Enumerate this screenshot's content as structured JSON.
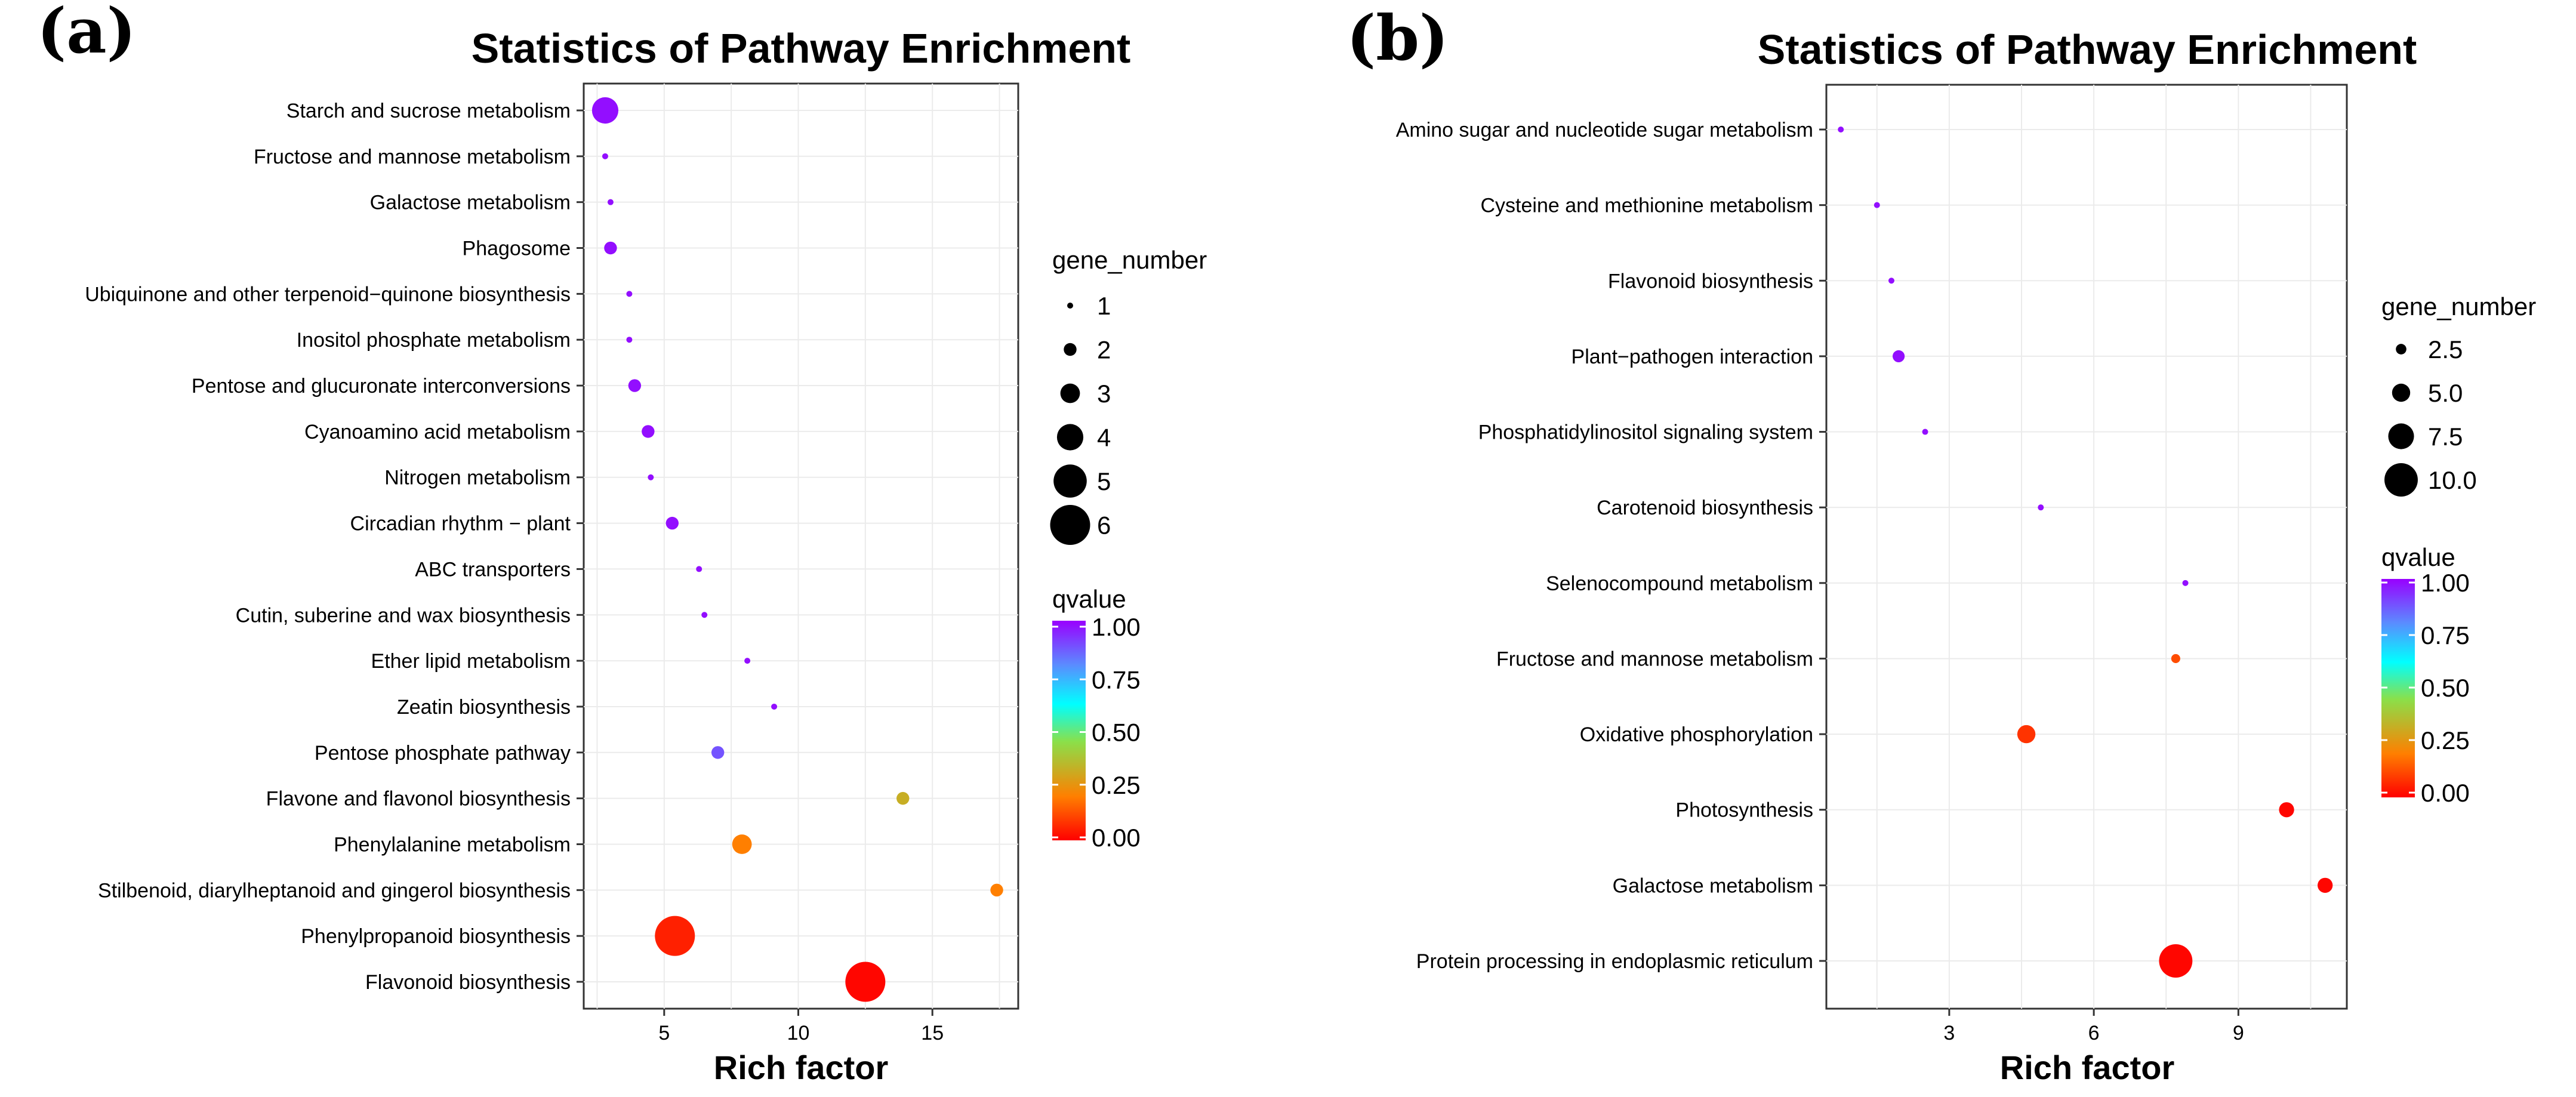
{
  "chart_data": [
    {
      "panel_label": "(a)",
      "type": "scatter",
      "title": "Statistics of Pathway Enrichment",
      "xlabel": "Rich factor",
      "ylabel": "",
      "xlim": [
        2,
        18.2
      ],
      "xticks": [
        5,
        10,
        15
      ],
      "grid": true,
      "legend_placement": "right",
      "categories": [
        "Starch and sucrose metabolism",
        "Fructose and mannose metabolism",
        "Galactose metabolism",
        "Phagosome",
        "Ubiquinone and other terpenoid−quinone biosynthesis",
        "Inositol phosphate metabolism",
        "Pentose and glucuronate interconversions",
        "Cyanoamino acid metabolism",
        "Nitrogen metabolism",
        "Circadian rhythm − plant",
        "ABC transporters",
        "Cutin, suberine and wax biosynthesis",
        "Ether lipid metabolism",
        "Zeatin biosynthesis",
        "Pentose phosphate pathway",
        "Flavone and flavonol biosynthesis",
        "Phenylalanine metabolism",
        "Stilbenoid, diarylheptanoid and gingerol biosynthesis",
        "Phenylpropanoid biosynthesis",
        "Flavonoid biosynthesis"
      ],
      "points": [
        {
          "category": "Starch and sucrose metabolism",
          "rich_factor": 2.8,
          "gene_number": 4,
          "qvalue": 0.98
        },
        {
          "category": "Fructose and mannose metabolism",
          "rich_factor": 2.8,
          "gene_number": 1,
          "qvalue": 0.98
        },
        {
          "category": "Galactose metabolism",
          "rich_factor": 3.0,
          "gene_number": 1,
          "qvalue": 0.98
        },
        {
          "category": "Phagosome",
          "rich_factor": 3.0,
          "gene_number": 2,
          "qvalue": 0.98
        },
        {
          "category": "Ubiquinone and other terpenoid−quinone biosynthesis",
          "rich_factor": 3.7,
          "gene_number": 1,
          "qvalue": 0.98
        },
        {
          "category": "Inositol phosphate metabolism",
          "rich_factor": 3.7,
          "gene_number": 1,
          "qvalue": 0.98
        },
        {
          "category": "Pentose and glucuronate interconversions",
          "rich_factor": 3.9,
          "gene_number": 2,
          "qvalue": 0.98
        },
        {
          "category": "Cyanoamino acid metabolism",
          "rich_factor": 4.4,
          "gene_number": 2,
          "qvalue": 0.98
        },
        {
          "category": "Nitrogen metabolism",
          "rich_factor": 4.5,
          "gene_number": 1,
          "qvalue": 0.98
        },
        {
          "category": "Circadian rhythm − plant",
          "rich_factor": 5.3,
          "gene_number": 2,
          "qvalue": 0.98
        },
        {
          "category": "ABC transporters",
          "rich_factor": 6.3,
          "gene_number": 1,
          "qvalue": 0.98
        },
        {
          "category": "Cutin, suberine and wax biosynthesis",
          "rich_factor": 6.5,
          "gene_number": 1,
          "qvalue": 0.98
        },
        {
          "category": "Ether lipid metabolism",
          "rich_factor": 8.1,
          "gene_number": 1,
          "qvalue": 0.98
        },
        {
          "category": "Zeatin biosynthesis",
          "rich_factor": 9.1,
          "gene_number": 1,
          "qvalue": 0.98
        },
        {
          "category": "Pentose phosphate pathway",
          "rich_factor": 7.0,
          "gene_number": 2,
          "qvalue": 0.88
        },
        {
          "category": "Flavone and flavonol biosynthesis",
          "rich_factor": 13.9,
          "gene_number": 2,
          "qvalue": 0.32
        },
        {
          "category": "Phenylalanine metabolism",
          "rich_factor": 7.9,
          "gene_number": 3,
          "qvalue": 0.2
        },
        {
          "category": "Stilbenoid, diarylheptanoid and gingerol biosynthesis",
          "rich_factor": 17.4,
          "gene_number": 2,
          "qvalue": 0.2
        },
        {
          "category": "Phenylpropanoid biosynthesis",
          "rich_factor": 5.4,
          "gene_number": 6,
          "qvalue": 0.05
        },
        {
          "category": "Flavonoid biosynthesis",
          "rich_factor": 12.5,
          "gene_number": 6,
          "qvalue": 0.01
        }
      ],
      "size_legend": {
        "title": "gene_number",
        "values": [
          1,
          2,
          3,
          4,
          5,
          6
        ],
        "labels": [
          "1",
          "2",
          "3",
          "4",
          "5",
          "6"
        ]
      },
      "color_legend": {
        "title": "qvalue",
        "values": [
          1.0,
          0.75,
          0.5,
          0.25,
          0.0
        ],
        "labels": [
          "1.00",
          "0.75",
          "0.50",
          "0.25",
          "0.00"
        ]
      }
    },
    {
      "panel_label": "(b)",
      "type": "scatter",
      "title": "Statistics of Pathway Enrichment",
      "xlabel": "Rich factor",
      "ylabel": "",
      "xlim": [
        0.45,
        11.25
      ],
      "xticks": [
        3,
        6,
        9
      ],
      "grid": true,
      "legend_placement": "right",
      "categories": [
        "Amino sugar and nucleotide sugar metabolism",
        "Cysteine and methionine metabolism",
        "Flavonoid biosynthesis",
        "Plant−pathogen interaction",
        "Phosphatidylinositol signaling system",
        "Carotenoid biosynthesis",
        "Selenocompound metabolism",
        "Fructose and mannose metabolism",
        "Oxidative phosphorylation",
        "Photosynthesis",
        "Galactose metabolism",
        "Protein processing in endoplasmic reticulum"
      ],
      "points": [
        {
          "category": "Amino sugar and nucleotide sugar metabolism",
          "rich_factor": 0.75,
          "gene_number": 1,
          "qvalue": 0.98
        },
        {
          "category": "Cysteine and methionine metabolism",
          "rich_factor": 1.5,
          "gene_number": 1,
          "qvalue": 0.98
        },
        {
          "category": "Flavonoid biosynthesis",
          "rich_factor": 1.8,
          "gene_number": 1,
          "qvalue": 0.98
        },
        {
          "category": "Plant−pathogen interaction",
          "rich_factor": 1.95,
          "gene_number": 3,
          "qvalue": 0.98
        },
        {
          "category": "Phosphatidylinositol signaling system",
          "rich_factor": 2.5,
          "gene_number": 1,
          "qvalue": 0.98
        },
        {
          "category": "Carotenoid biosynthesis",
          "rich_factor": 4.9,
          "gene_number": 1,
          "qvalue": 0.98
        },
        {
          "category": "Selenocompound metabolism",
          "rich_factor": 7.9,
          "gene_number": 1,
          "qvalue": 0.98
        },
        {
          "category": "Fructose and mannose metabolism",
          "rich_factor": 7.7,
          "gene_number": 2,
          "qvalue": 0.12
        },
        {
          "category": "Oxidative phosphorylation",
          "rich_factor": 4.6,
          "gene_number": 5,
          "qvalue": 0.08
        },
        {
          "category": "Photosynthesis",
          "rich_factor": 10.0,
          "gene_number": 4,
          "qvalue": 0.01
        },
        {
          "category": "Galactose metabolism",
          "rich_factor": 10.8,
          "gene_number": 4,
          "qvalue": 0.01
        },
        {
          "category": "Protein processing in endoplasmic reticulum",
          "rich_factor": 7.7,
          "gene_number": 10,
          "qvalue": 0.01
        }
      ],
      "size_legend": {
        "title": "gene_number",
        "values": [
          2.5,
          5.0,
          7.5,
          10.0
        ],
        "labels": [
          "2.5",
          "5.0",
          "7.5",
          "10.0"
        ]
      },
      "color_legend": {
        "title": "qvalue",
        "values": [
          1.0,
          0.75,
          0.5,
          0.25,
          0.0
        ],
        "labels": [
          "1.00",
          "0.75",
          "0.50",
          "0.25",
          "0.00"
        ]
      }
    }
  ],
  "colors": {
    "gradient": [
      "#ff0000",
      "#ff7f00",
      "#8ae04a",
      "#00ffff",
      "#5b8bff",
      "#9900ff"
    ],
    "axis": "#333333",
    "grid": "#ebebeb",
    "legend_point": "#000000"
  }
}
